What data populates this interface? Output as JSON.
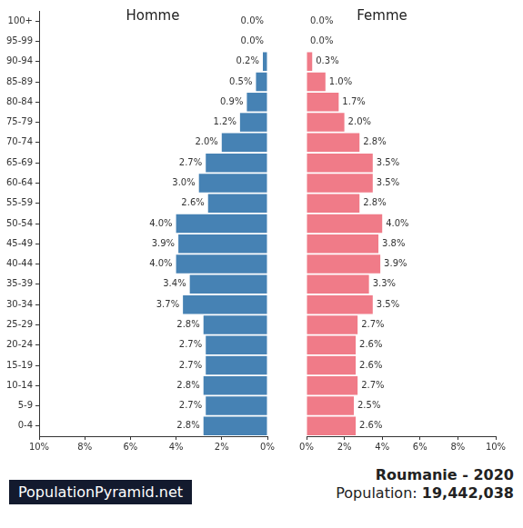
{
  "chart_data": {
    "type": "bar",
    "orientation": "horizontal",
    "title": "Roumanie - 2020",
    "subtitle": "Population: 19,442,038",
    "annotations": [
      "PopulationPyramid.net"
    ],
    "categories": [
      "100+",
      "95-99",
      "90-94",
      "85-89",
      "80-84",
      "75-79",
      "70-74",
      "65-69",
      "60-64",
      "55-59",
      "50-54",
      "45-49",
      "40-44",
      "35-39",
      "30-34",
      "25-29",
      "20-24",
      "15-19",
      "10-14",
      "5-9",
      "0-4"
    ],
    "series": [
      {
        "name": "Homme",
        "color": "#4682b4",
        "values": [
          0.0,
          0.0,
          0.2,
          0.5,
          0.9,
          1.2,
          2.0,
          2.7,
          3.0,
          2.6,
          4.0,
          3.9,
          4.0,
          3.4,
          3.7,
          2.8,
          2.7,
          2.7,
          2.8,
          2.7,
          2.8
        ],
        "value_labels": [
          "0.0%",
          "0.0%",
          "0.2%",
          "0.5%",
          "0.9%",
          "1.2%",
          "2.0%",
          "2.7%",
          "3.0%",
          "2.6%",
          "4.0%",
          "3.9%",
          "4.0%",
          "3.4%",
          "3.7%",
          "2.8%",
          "2.7%",
          "2.7%",
          "2.8%",
          "2.7%",
          "2.8%"
        ]
      },
      {
        "name": "Femme",
        "color": "#f07b88",
        "values": [
          0.0,
          0.0,
          0.3,
          1.0,
          1.7,
          2.0,
          2.8,
          3.5,
          3.5,
          2.8,
          4.0,
          3.8,
          3.9,
          3.3,
          3.5,
          2.7,
          2.6,
          2.6,
          2.7,
          2.5,
          2.6
        ],
        "value_labels": [
          "0.0%",
          "0.0%",
          "0.3%",
          "1.0%",
          "1.7%",
          "2.0%",
          "2.8%",
          "3.5%",
          "3.5%",
          "2.8%",
          "4.0%",
          "3.8%",
          "3.9%",
          "3.3%",
          "3.5%",
          "2.7%",
          "2.6%",
          "2.6%",
          "2.7%",
          "2.5%",
          "2.6%"
        ]
      }
    ],
    "xlim": [
      0,
      10
    ],
    "xticks": [
      {
        "value": 0,
        "label": "0%"
      },
      {
        "value": 2,
        "label": "2%"
      },
      {
        "value": 4,
        "label": "4%"
      },
      {
        "value": 6,
        "label": "6%"
      },
      {
        "value": 8,
        "label": "8%"
      },
      {
        "value": 10,
        "label": "10%"
      }
    ],
    "grid": false,
    "data_labels": true
  }
}
